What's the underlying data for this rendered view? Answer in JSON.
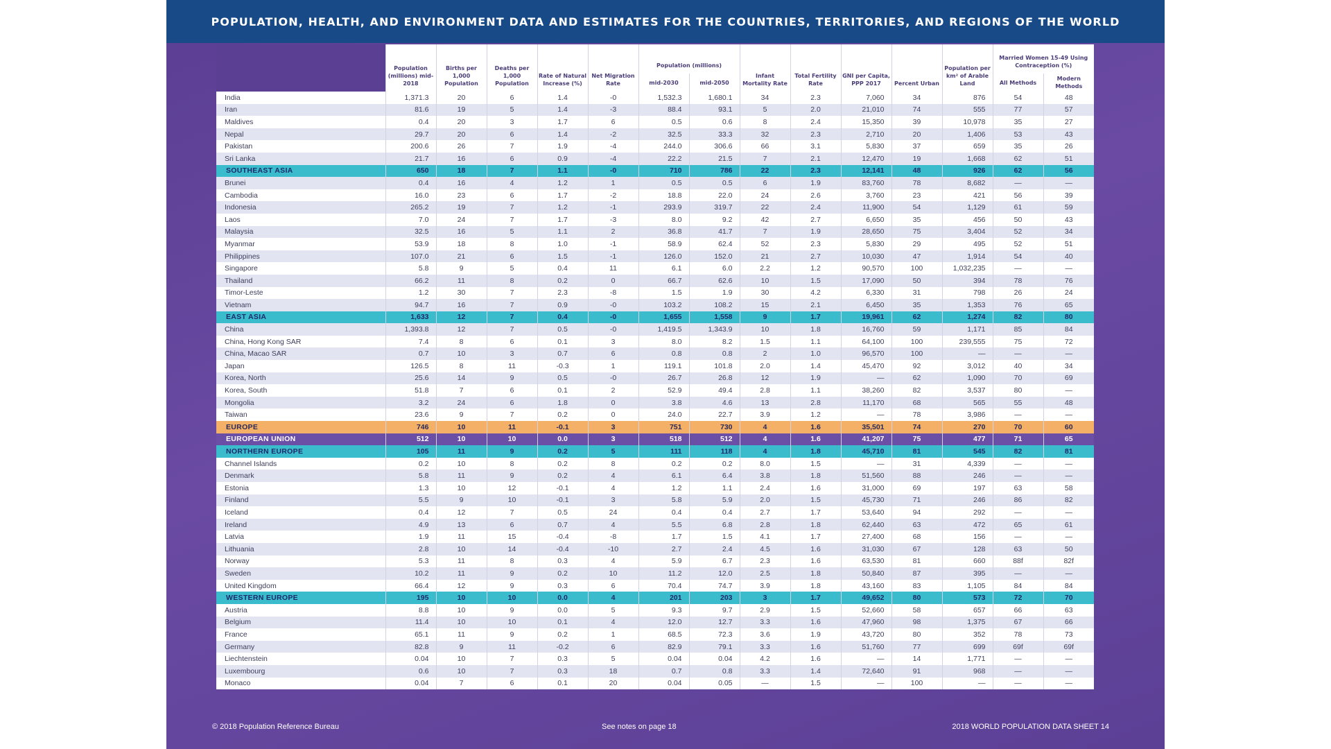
{
  "title": "POPULATION, HEALTH, AND ENVIRONMENT DATA AND ESTIMATES FOR THE COUNTRIES, TERRITORIES, AND REGIONS OF THE WORLD",
  "headers": {
    "pop_2018": "Population (millions) mid-2018",
    "births": "Births per 1,000 Population",
    "deaths": "Deaths per 1,000 Population",
    "rni": "Rate of Natural Increase (%)",
    "migration": "Net Migration Rate",
    "pop_proj": "Population (millions)",
    "pop_2030": "mid-2030",
    "pop_2050": "mid-2050",
    "imr": "Infant Mortality Rate",
    "tfr": "Total Fertility Rate",
    "gni": "GNI per Capita, PPP 2017",
    "urban": "Percent Urban",
    "density": "Population per km² of Arable Land",
    "contra": "Married Women 15-49 Using Contraception (%)",
    "all_methods": "All Methods",
    "modern_methods": "Modern Methods"
  },
  "rows": [
    {
      "t": "c",
      "v": [
        "India",
        "1,371.3",
        "20",
        "6",
        "1.4",
        "-0",
        "1,532.3",
        "1,680.1",
        "34",
        "2.3",
        "7,060",
        "34",
        "876",
        "54",
        "48"
      ]
    },
    {
      "t": "c",
      "v": [
        "Iran",
        "81.6",
        "19",
        "5",
        "1.4",
        "-3",
        "88.4",
        "93.1",
        "5",
        "2.0",
        "21,010",
        "74",
        "555",
        "77",
        "57"
      ]
    },
    {
      "t": "c",
      "v": [
        "Maldives",
        "0.4",
        "20",
        "3",
        "1.7",
        "6",
        "0.5",
        "0.6",
        "8",
        "2.4",
        "15,350",
        "39",
        "10,978",
        "35",
        "27"
      ]
    },
    {
      "t": "c",
      "v": [
        "Nepal",
        "29.7",
        "20",
        "6",
        "1.4",
        "-2",
        "32.5",
        "33.3",
        "32",
        "2.3",
        "2,710",
        "20",
        "1,406",
        "53",
        "43"
      ]
    },
    {
      "t": "c",
      "v": [
        "Pakistan",
        "200.6",
        "26",
        "7",
        "1.9",
        "-4",
        "244.0",
        "306.6",
        "66",
        "3.1",
        "5,830",
        "37",
        "659",
        "35",
        "26"
      ]
    },
    {
      "t": "c",
      "v": [
        "Sri Lanka",
        "21.7",
        "16",
        "6",
        "0.9",
        "-4",
        "22.2",
        "21.5",
        "7",
        "2.1",
        "12,470",
        "19",
        "1,668",
        "62",
        "51"
      ]
    },
    {
      "t": "region",
      "v": [
        "SOUTHEAST ASIA",
        "650",
        "18",
        "7",
        "1.1",
        "-0",
        "710",
        "786",
        "22",
        "2.3",
        "12,141",
        "48",
        "926",
        "62",
        "56"
      ]
    },
    {
      "t": "c",
      "v": [
        "Brunei",
        "0.4",
        "16",
        "4",
        "1.2",
        "1",
        "0.5",
        "0.5",
        "6",
        "1.9",
        "83,760",
        "78",
        "8,682",
        "—",
        "—"
      ]
    },
    {
      "t": "c",
      "v": [
        "Cambodia",
        "16.0",
        "23",
        "6",
        "1.7",
        "-2",
        "18.8",
        "22.0",
        "24",
        "2.6",
        "3,760",
        "23",
        "421",
        "56",
        "39"
      ]
    },
    {
      "t": "c",
      "v": [
        "Indonesia",
        "265.2",
        "19",
        "7",
        "1.2",
        "-1",
        "293.9",
        "319.7",
        "22",
        "2.4",
        "11,900",
        "54",
        "1,129",
        "61",
        "59"
      ]
    },
    {
      "t": "c",
      "v": [
        "Laos",
        "7.0",
        "24",
        "7",
        "1.7",
        "-3",
        "8.0",
        "9.2",
        "42",
        "2.7",
        "6,650",
        "35",
        "456",
        "50",
        "43"
      ]
    },
    {
      "t": "c",
      "v": [
        "Malaysia",
        "32.5",
        "16",
        "5",
        "1.1",
        "2",
        "36.8",
        "41.7",
        "7",
        "1.9",
        "28,650",
        "75",
        "3,404",
        "52",
        "34"
      ]
    },
    {
      "t": "c",
      "v": [
        "Myanmar",
        "53.9",
        "18",
        "8",
        "1.0",
        "-1",
        "58.9",
        "62.4",
        "52",
        "2.3",
        "5,830",
        "29",
        "495",
        "52",
        "51"
      ]
    },
    {
      "t": "c",
      "v": [
        "Philippines",
        "107.0",
        "21",
        "6",
        "1.5",
        "-1",
        "126.0",
        "152.0",
        "21",
        "2.7",
        "10,030",
        "47",
        "1,914",
        "54",
        "40"
      ]
    },
    {
      "t": "c",
      "v": [
        "Singapore",
        "5.8",
        "9",
        "5",
        "0.4",
        "11",
        "6.1",
        "6.0",
        "2.2",
        "1.2",
        "90,570",
        "100",
        "1,032,235",
        "—",
        "—"
      ]
    },
    {
      "t": "c",
      "v": [
        "Thailand",
        "66.2",
        "11",
        "8",
        "0.2",
        "0",
        "66.7",
        "62.6",
        "10",
        "1.5",
        "17,090",
        "50",
        "394",
        "78",
        "76"
      ]
    },
    {
      "t": "c",
      "v": [
        "Timor-Leste",
        "1.2",
        "30",
        "7",
        "2.3",
        "-8",
        "1.5",
        "1.9",
        "30",
        "4.2",
        "6,330",
        "31",
        "798",
        "26",
        "24"
      ]
    },
    {
      "t": "c",
      "v": [
        "Vietnam",
        "94.7",
        "16",
        "7",
        "0.9",
        "-0",
        "103.2",
        "108.2",
        "15",
        "2.1",
        "6,450",
        "35",
        "1,353",
        "76",
        "65"
      ]
    },
    {
      "t": "region",
      "v": [
        "EAST ASIA",
        "1,633",
        "12",
        "7",
        "0.4",
        "-0",
        "1,655",
        "1,558",
        "9",
        "1.7",
        "19,961",
        "62",
        "1,274",
        "82",
        "80"
      ]
    },
    {
      "t": "c",
      "v": [
        "China",
        "1,393.8",
        "12",
        "7",
        "0.5",
        "-0",
        "1,419.5",
        "1,343.9",
        "10",
        "1.8",
        "16,760",
        "59",
        "1,171",
        "85",
        "84"
      ]
    },
    {
      "t": "c",
      "v": [
        "China, Hong Kong SAR",
        "7.4",
        "8",
        "6",
        "0.1",
        "3",
        "8.0",
        "8.2",
        "1.5",
        "1.1",
        "64,100",
        "100",
        "239,555",
        "75",
        "72"
      ]
    },
    {
      "t": "c",
      "v": [
        "China, Macao SAR",
        "0.7",
        "10",
        "3",
        "0.7",
        "6",
        "0.8",
        "0.8",
        "2",
        "1.0",
        "96,570",
        "100",
        "—",
        "—",
        "—"
      ]
    },
    {
      "t": "c",
      "v": [
        "Japan",
        "126.5",
        "8",
        "11",
        "-0.3",
        "1",
        "119.1",
        "101.8",
        "2.0",
        "1.4",
        "45,470",
        "92",
        "3,012",
        "40",
        "34"
      ]
    },
    {
      "t": "c",
      "v": [
        "Korea, North",
        "25.6",
        "14",
        "9",
        "0.5",
        "-0",
        "26.7",
        "26.8",
        "12",
        "1.9",
        "—",
        "62",
        "1,090",
        "70",
        "69"
      ]
    },
    {
      "t": "c",
      "v": [
        "Korea, South",
        "51.8",
        "7",
        "6",
        "0.1",
        "2",
        "52.9",
        "49.4",
        "2.8",
        "1.1",
        "38,260",
        "82",
        "3,537",
        "80",
        "—"
      ]
    },
    {
      "t": "c",
      "v": [
        "Mongolia",
        "3.2",
        "24",
        "6",
        "1.8",
        "0",
        "3.8",
        "4.6",
        "13",
        "2.8",
        "11,170",
        "68",
        "565",
        "55",
        "48"
      ]
    },
    {
      "t": "c",
      "v": [
        "Taiwan",
        "23.6",
        "9",
        "7",
        "0.2",
        "0",
        "24.0",
        "22.7",
        "3.9",
        "1.2",
        "—",
        "78",
        "3,986",
        "—",
        "—"
      ]
    },
    {
      "t": "europe",
      "v": [
        "EUROPE",
        "746",
        "10",
        "11",
        "-0.1",
        "3",
        "751",
        "730",
        "4",
        "1.6",
        "35,501",
        "74",
        "270",
        "70",
        "60"
      ]
    },
    {
      "t": "eu",
      "v": [
        "EUROPEAN UNION",
        "512",
        "10",
        "10",
        "0.0",
        "3",
        "518",
        "512",
        "4",
        "1.6",
        "41,207",
        "75",
        "477",
        "71",
        "65"
      ]
    },
    {
      "t": "region",
      "v": [
        "NORTHERN EUROPE",
        "105",
        "11",
        "9",
        "0.2",
        "5",
        "111",
        "118",
        "4",
        "1.8",
        "45,710",
        "81",
        "545",
        "82",
        "81"
      ]
    },
    {
      "t": "c",
      "v": [
        "Channel Islands",
        "0.2",
        "10",
        "8",
        "0.2",
        "8",
        "0.2",
        "0.2",
        "8.0",
        "1.5",
        "—",
        "31",
        "4,339",
        "—",
        "—"
      ]
    },
    {
      "t": "c",
      "v": [
        "Denmark",
        "5.8",
        "11",
        "9",
        "0.2",
        "4",
        "6.1",
        "6.4",
        "3.8",
        "1.8",
        "51,560",
        "88",
        "246",
        "—",
        "—"
      ]
    },
    {
      "t": "c",
      "v": [
        "Estonia",
        "1.3",
        "10",
        "12",
        "-0.1",
        "4",
        "1.2",
        "1.1",
        "2.4",
        "1.6",
        "31,000",
        "69",
        "197",
        "63",
        "58"
      ]
    },
    {
      "t": "c",
      "v": [
        "Finland",
        "5.5",
        "9",
        "10",
        "-0.1",
        "3",
        "5.8",
        "5.9",
        "2.0",
        "1.5",
        "45,730",
        "71",
        "246",
        "86",
        "82"
      ]
    },
    {
      "t": "c",
      "v": [
        "Iceland",
        "0.4",
        "12",
        "7",
        "0.5",
        "24",
        "0.4",
        "0.4",
        "2.7",
        "1.7",
        "53,640",
        "94",
        "292",
        "—",
        "—"
      ]
    },
    {
      "t": "c",
      "v": [
        "Ireland",
        "4.9",
        "13",
        "6",
        "0.7",
        "4",
        "5.5",
        "6.8",
        "2.8",
        "1.8",
        "62,440",
        "63",
        "472",
        "65",
        "61"
      ]
    },
    {
      "t": "c",
      "v": [
        "Latvia",
        "1.9",
        "11",
        "15",
        "-0.4",
        "-8",
        "1.7",
        "1.5",
        "4.1",
        "1.7",
        "27,400",
        "68",
        "156",
        "—",
        "—"
      ]
    },
    {
      "t": "c",
      "v": [
        "Lithuania",
        "2.8",
        "10",
        "14",
        "-0.4",
        "-10",
        "2.7",
        "2.4",
        "4.5",
        "1.6",
        "31,030",
        "67",
        "128",
        "63",
        "50"
      ]
    },
    {
      "t": "c",
      "v": [
        "Norway",
        "5.3",
        "11",
        "8",
        "0.3",
        "4",
        "5.9",
        "6.7",
        "2.3",
        "1.6",
        "63,530",
        "81",
        "660",
        "88f",
        "82f"
      ]
    },
    {
      "t": "c",
      "v": [
        "Sweden",
        "10.2",
        "11",
        "9",
        "0.2",
        "10",
        "11.2",
        "12.0",
        "2.5",
        "1.8",
        "50,840",
        "87",
        "395",
        "—",
        "—"
      ]
    },
    {
      "t": "c",
      "v": [
        "United Kingdom",
        "66.4",
        "12",
        "9",
        "0.3",
        "6",
        "70.4",
        "74.7",
        "3.9",
        "1.8",
        "43,160",
        "83",
        "1,105",
        "84",
        "84"
      ]
    },
    {
      "t": "region",
      "v": [
        "WESTERN EUROPE",
        "195",
        "10",
        "10",
        "0.0",
        "4",
        "201",
        "203",
        "3",
        "1.7",
        "49,652",
        "80",
        "573",
        "72",
        "70"
      ]
    },
    {
      "t": "c",
      "v": [
        "Austria",
        "8.8",
        "10",
        "9",
        "0.0",
        "5",
        "9.3",
        "9.7",
        "2.9",
        "1.5",
        "52,660",
        "58",
        "657",
        "66",
        "63"
      ]
    },
    {
      "t": "c",
      "v": [
        "Belgium",
        "11.4",
        "10",
        "10",
        "0.1",
        "4",
        "12.0",
        "12.7",
        "3.3",
        "1.6",
        "47,960",
        "98",
        "1,375",
        "67",
        "66"
      ]
    },
    {
      "t": "c",
      "v": [
        "France",
        "65.1",
        "11",
        "9",
        "0.2",
        "1",
        "68.5",
        "72.3",
        "3.6",
        "1.9",
        "43,720",
        "80",
        "352",
        "78",
        "73"
      ]
    },
    {
      "t": "c",
      "v": [
        "Germany",
        "82.8",
        "9",
        "11",
        "-0.2",
        "6",
        "82.9",
        "79.1",
        "3.3",
        "1.6",
        "51,760",
        "77",
        "699",
        "69f",
        "69f"
      ]
    },
    {
      "t": "c",
      "v": [
        "Liechtenstein",
        "0.04",
        "10",
        "7",
        "0.3",
        "5",
        "0.04",
        "0.04",
        "4.2",
        "1.6",
        "—",
        "14",
        "1,771",
        "—",
        "—"
      ]
    },
    {
      "t": "c",
      "v": [
        "Luxembourg",
        "0.6",
        "10",
        "7",
        "0.3",
        "18",
        "0.7",
        "0.8",
        "3.3",
        "1.4",
        "72,640",
        "91",
        "968",
        "—",
        "—"
      ]
    },
    {
      "t": "c",
      "v": [
        "Monaco",
        "0.04",
        "7",
        "6",
        "0.1",
        "20",
        "0.04",
        "0.05",
        "—",
        "1.5",
        "—",
        "100",
        "—",
        "—",
        "—"
      ]
    }
  ],
  "footer": {
    "left": "© 2018 Population Reference Bureau",
    "middle": "See notes on page 18",
    "right": "2018 WORLD POPULATION DATA SHEET   14"
  }
}
